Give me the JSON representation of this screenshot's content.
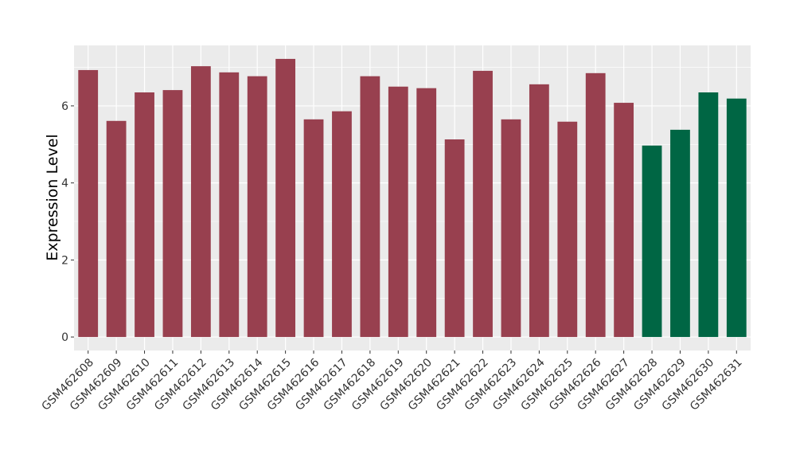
{
  "chart_data": {
    "type": "bar",
    "y_label": "Expression Level",
    "categories": [
      "GSM462608",
      "GSM462609",
      "GSM462610",
      "GSM462611",
      "GSM462612",
      "GSM462613",
      "GSM462614",
      "GSM462615",
      "GSM462616",
      "GSM462617",
      "GSM462618",
      "GSM462619",
      "GSM462620",
      "GSM462621",
      "GSM462622",
      "GSM462623",
      "GSM462624",
      "GSM462625",
      "GSM462626",
      "GSM462627",
      "GSM462628",
      "GSM462629",
      "GSM462630",
      "GSM462631"
    ],
    "values": [
      6.93,
      5.61,
      6.35,
      6.41,
      7.03,
      6.87,
      6.77,
      7.22,
      5.65,
      5.86,
      6.77,
      6.5,
      6.46,
      5.13,
      6.91,
      5.65,
      6.56,
      5.59,
      6.85,
      6.08,
      4.97,
      5.38,
      6.35,
      6.19
    ],
    "colors": [
      "#98404f",
      "#98404f",
      "#98404f",
      "#98404f",
      "#98404f",
      "#98404f",
      "#98404f",
      "#98404f",
      "#98404f",
      "#98404f",
      "#98404f",
      "#98404f",
      "#98404f",
      "#98404f",
      "#98404f",
      "#98404f",
      "#98404f",
      "#98404f",
      "#98404f",
      "#98404f",
      "#006644",
      "#006644",
      "#006644",
      "#006644"
    ],
    "ylim": [
      -0.35,
      7.57
    ],
    "yticks": [
      0,
      2,
      4,
      6
    ],
    "grid": true
  }
}
